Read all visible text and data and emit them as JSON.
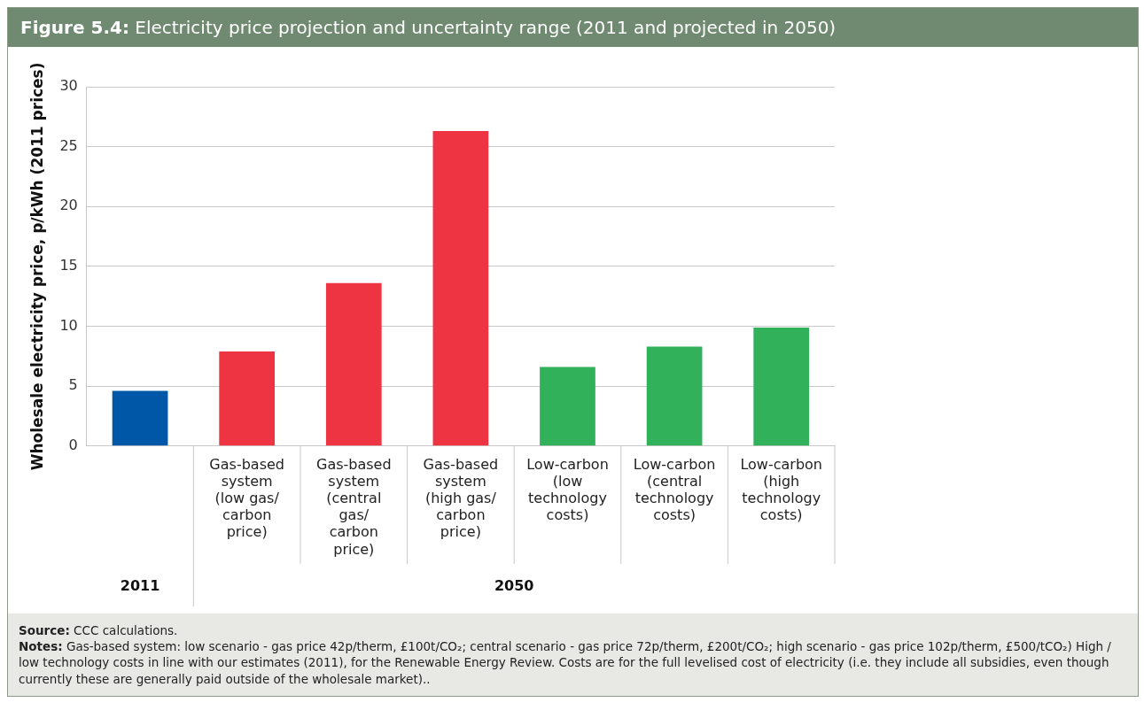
{
  "chart_data": {
    "type": "bar",
    "title": "Figure 5.4: Electricity price projection and uncertainty range (2011 and projected in 2050)",
    "ylabel": "Wholesale electricity price, p/kWh (2011 prices)",
    "categories": [
      null,
      "Gas-based system (low gas/ carbon price)",
      "Gas-based system (central gas/ carbon price)",
      "Gas-based system (high gas/ carbon price)",
      "Low-carbon (low technology costs)",
      "Low-carbon (central technology costs)",
      "Low-carbon (high technology costs)"
    ],
    "values": [
      4.6,
      7.9,
      13.6,
      26.3,
      6.6,
      8.3,
      9.9
    ],
    "colors": [
      "#0057a8",
      "#ee3342",
      "#ee3342",
      "#ee3342",
      "#31b15a",
      "#31b15a",
      "#31b15a"
    ],
    "ylim": [
      0,
      30
    ],
    "yticks": [
      0,
      5,
      10,
      15,
      20,
      25,
      30
    ],
    "grid": "y",
    "annotations": [
      "2011",
      "2050",
      "Source: CCC calculations.",
      "Notes: Gas-based system: low scenario - gas price 42p/therm, £100t/CO₂; central scenario  - gas price 72p/therm, £200t/CO₂; high scenario - gas price 102p/therm, £500/tCO₂) High / low technology costs in line with our estimates (2011), for the Renewable Energy Review. Costs are for the full levelised cost of electricity (i.e. they include all subsidies, even though currently these are generally paid outside of the wholesale market).."
    ]
  }
}
